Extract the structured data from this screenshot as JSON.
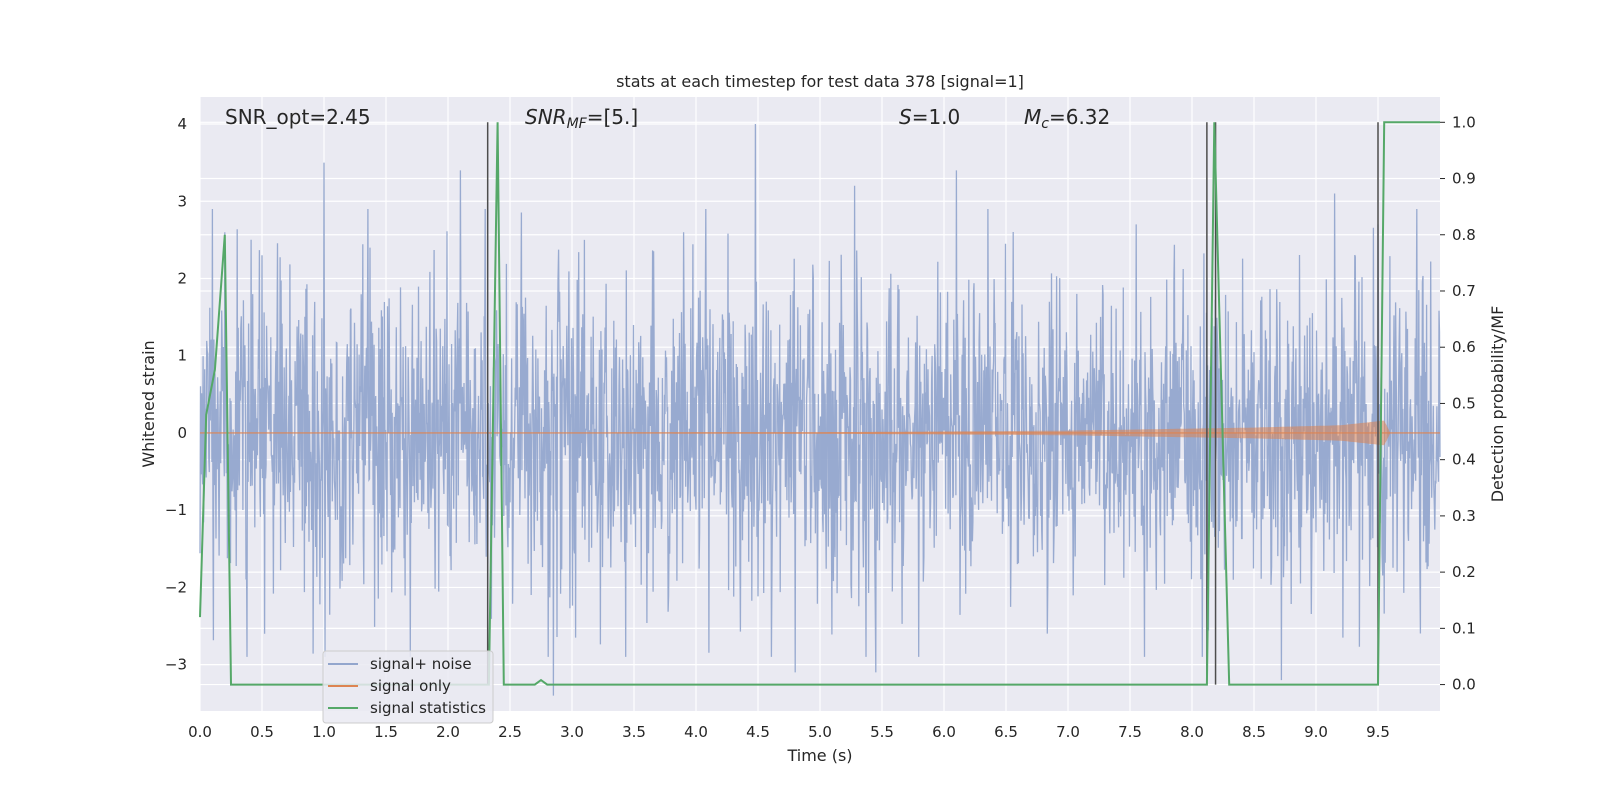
{
  "chart_data": {
    "type": "line",
    "title": "stats at each timestep for test data 378 [signal=1]",
    "xlabel": "Time (s)",
    "ylabel_left": "Whitened strain",
    "ylabel_right": "Detection probability/MF",
    "xlim": [
      0.0,
      10.0
    ],
    "ylim_left": [
      -3.6,
      4.35
    ],
    "ylim_right": [
      -0.047,
      1.045
    ],
    "xticks": [
      "0.0",
      "0.5",
      "1.0",
      "1.5",
      "2.0",
      "2.5",
      "3.0",
      "3.5",
      "4.0",
      "4.5",
      "5.0",
      "5.5",
      "6.0",
      "6.5",
      "7.0",
      "7.5",
      "8.0",
      "8.5",
      "9.0",
      "9.5"
    ],
    "yticks_left": [
      "4",
      "3",
      "2",
      "1",
      "0",
      "−1",
      "−2",
      "−3"
    ],
    "yticks_right": [
      "1.0",
      "0.9",
      "0.8",
      "0.7",
      "0.6",
      "0.5",
      "0.4",
      "0.3",
      "0.2",
      "0.1",
      "0.0"
    ],
    "grid": true,
    "legend_placement": "lower-left",
    "annotations": {
      "snr_opt": "SNR_opt=2.45",
      "snr_mf_base": "SNR",
      "snr_mf_sub": "MF",
      "snr_mf_value": "=[5.]",
      "s_sym": "S",
      "s_value": "=1.0",
      "mc_sym": "M",
      "mc_sub": "c",
      "mc_value": "=6.32"
    },
    "markers_x": [
      2.32,
      8.12,
      8.19,
      9.5
    ],
    "series": [
      {
        "name": "signal+ noise",
        "axis": "left",
        "color": "#93a6cd",
        "amplitude_std": 1.0,
        "peak_points": [
          [
            0.1,
            2.9
          ],
          [
            0.2,
            2.6
          ],
          [
            0.5,
            2.3
          ],
          [
            0.52,
            -2.6
          ],
          [
            1.0,
            3.5
          ],
          [
            1.37,
            2.4
          ],
          [
            2.1,
            3.4
          ],
          [
            2.3,
            2.9
          ],
          [
            2.85,
            -3.4
          ],
          [
            3.1,
            2.5
          ],
          [
            3.9,
            2.6
          ],
          [
            4.48,
            4.0
          ],
          [
            4.8,
            -3.1
          ],
          [
            5.28,
            3.2
          ],
          [
            5.45,
            -3.1
          ],
          [
            6.1,
            3.4
          ],
          [
            7.55,
            2.7
          ],
          [
            8.72,
            -3.2
          ],
          [
            9.15,
            3.1
          ],
          [
            9.5,
            2.7
          ]
        ]
      },
      {
        "name": "signal only",
        "axis": "left",
        "color": "#dd8452",
        "envelope": [
          [
            0.0,
            0.0
          ],
          [
            5.0,
            0.01
          ],
          [
            7.0,
            0.03
          ],
          [
            8.5,
            0.07
          ],
          [
            9.2,
            0.1
          ],
          [
            9.55,
            0.16
          ],
          [
            9.6,
            0.0
          ],
          [
            10.0,
            0.0
          ]
        ]
      },
      {
        "name": "signal statistics",
        "axis": "right",
        "color": "#55a868",
        "x": [
          0.0,
          0.05,
          0.12,
          0.2,
          0.25,
          0.3,
          2.33,
          2.4,
          2.45,
          2.62,
          2.7,
          2.75,
          2.8,
          2.87,
          8.12,
          8.18,
          8.3,
          9.5,
          9.55,
          10.0
        ],
        "y": [
          0.12,
          0.48,
          0.56,
          0.8,
          0.0,
          0.0,
          0.0,
          1.0,
          0.0,
          0.0,
          0.0,
          0.008,
          0.0,
          0.0,
          0.0,
          1.0,
          0.0,
          0.0,
          1.0,
          1.0
        ]
      }
    ]
  }
}
